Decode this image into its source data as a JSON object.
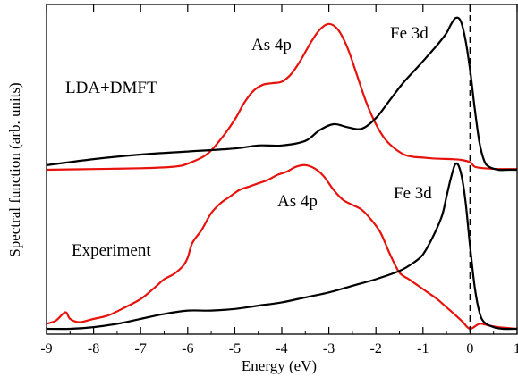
{
  "chart_data": {
    "type": "line",
    "xlabel": "Energy (eV)",
    "ylabel": "Spectral function (arb. units)",
    "xlim": [
      -9,
      1
    ],
    "x_ticks": [
      "-9",
      "-8",
      "-7",
      "-6",
      "-5",
      "-4",
      "-3",
      "-2",
      "-1",
      "0",
      "1"
    ],
    "y_ticks_labeled": false,
    "fermi_level_marker": {
      "x": 0,
      "style": "dashed"
    },
    "panels": [
      {
        "label": "LDA+DMFT",
        "series": [
          {
            "name": "As 4p",
            "color": "#e8120c",
            "x": [
              -9,
              -8,
              -7,
              -6.3,
              -6,
              -5.6,
              -5.3,
              -5.0,
              -4.8,
              -4.6,
              -4.4,
              -4.2,
              -4.0,
              -3.8,
              -3.6,
              -3.4,
              -3.2,
              -3.0,
              -2.8,
              -2.6,
              -2.4,
              -2.2,
              -2.0,
              -1.8,
              -1.6,
              -1.4,
              -1.2,
              -1.0,
              -0.8,
              -0.6,
              -0.4,
              -0.2,
              0.0,
              0.1,
              0.3,
              0.6,
              1.0
            ],
            "y": [
              0.0,
              0.005,
              0.01,
              0.02,
              0.04,
              0.1,
              0.2,
              0.33,
              0.44,
              0.52,
              0.56,
              0.57,
              0.58,
              0.63,
              0.72,
              0.83,
              0.92,
              0.96,
              0.92,
              0.8,
              0.62,
              0.44,
              0.3,
              0.2,
              0.14,
              0.1,
              0.085,
              0.08,
              0.075,
              0.072,
              0.07,
              0.065,
              0.05,
              0.02,
              0.01,
              0.005,
              0.005
            ]
          },
          {
            "name": "Fe 3d",
            "color": "#000000",
            "x": [
              -9,
              -8,
              -7,
              -6,
              -5,
              -4.5,
              -4,
              -3.5,
              -3.2,
              -2.9,
              -2.6,
              -2.3,
              -2.0,
              -1.7,
              -1.4,
              -1.1,
              -0.9,
              -0.7,
              -0.5,
              -0.4,
              -0.3,
              -0.2,
              -0.1,
              0.0,
              0.1,
              0.2,
              0.3,
              0.4,
              0.6,
              0.8,
              1.0
            ],
            "y": [
              0.03,
              0.07,
              0.1,
              0.12,
              0.14,
              0.16,
              0.16,
              0.19,
              0.26,
              0.3,
              0.28,
              0.27,
              0.34,
              0.46,
              0.58,
              0.68,
              0.75,
              0.82,
              0.9,
              0.96,
              1.0,
              0.98,
              0.86,
              0.66,
              0.4,
              0.18,
              0.06,
              0.02,
              0.0,
              0.0,
              0.0
            ]
          }
        ]
      },
      {
        "label": "Experiment",
        "series": [
          {
            "name": "As 4p",
            "color": "#e8120c",
            "x": [
              -9,
              -8.8,
              -8.6,
              -8.5,
              -8.3,
              -8.0,
              -7.7,
              -7.4,
              -7.0,
              -6.7,
              -6.5,
              -6.3,
              -6.1,
              -6.0,
              -5.9,
              -5.7,
              -5.5,
              -5.3,
              -5.1,
              -4.9,
              -4.7,
              -4.5,
              -4.3,
              -4.1,
              -3.9,
              -3.7,
              -3.5,
              -3.3,
              -3.1,
              -2.9,
              -2.7,
              -2.5,
              -2.3,
              -2.1,
              -1.9,
              -1.7,
              -1.5,
              -1.3,
              -1.1,
              -0.9,
              -0.7,
              -0.5,
              -0.3,
              -0.15,
              0.0,
              0.2,
              0.4,
              0.6,
              0.8,
              1.0
            ],
            "y": [
              0.03,
              0.05,
              0.1,
              0.06,
              0.04,
              0.06,
              0.08,
              0.12,
              0.18,
              0.25,
              0.3,
              0.33,
              0.38,
              0.43,
              0.52,
              0.6,
              0.7,
              0.76,
              0.8,
              0.84,
              0.86,
              0.88,
              0.9,
              0.93,
              0.95,
              0.98,
              0.99,
              0.97,
              0.92,
              0.84,
              0.78,
              0.75,
              0.72,
              0.66,
              0.58,
              0.45,
              0.34,
              0.3,
              0.26,
              0.22,
              0.18,
              0.13,
              0.08,
              0.04,
              0.0,
              0.03,
              0.02,
              0.01,
              0.005,
              0.0
            ]
          },
          {
            "name": "Fe 3d",
            "color": "#000000",
            "x": [
              -9,
              -8.5,
              -8.0,
              -7.5,
              -7.0,
              -6.5,
              -6.0,
              -5.5,
              -5.0,
              -4.5,
              -4.0,
              -3.5,
              -3.0,
              -2.5,
              -2.0,
              -1.5,
              -1.2,
              -1.0,
              -0.8,
              -0.6,
              -0.5,
              -0.4,
              -0.3,
              -0.2,
              -0.1,
              0.0,
              0.1,
              0.2,
              0.3,
              0.5,
              0.7,
              1.0
            ],
            "y": [
              0.0,
              0.0,
              0.01,
              0.03,
              0.06,
              0.09,
              0.11,
              0.11,
              0.12,
              0.14,
              0.16,
              0.19,
              0.22,
              0.26,
              0.3,
              0.35,
              0.4,
              0.45,
              0.55,
              0.68,
              0.8,
              0.92,
              1.0,
              0.95,
              0.78,
              0.5,
              0.25,
              0.1,
              0.04,
              0.01,
              0.0,
              0.0
            ]
          }
        ]
      }
    ]
  }
}
